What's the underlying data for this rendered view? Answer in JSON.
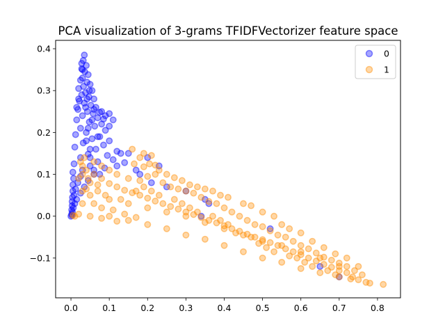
{
  "chart_data": {
    "type": "scatter",
    "title": "PCA visualization of 3-grams TFIDFVectorizer feature space",
    "xlabel": "",
    "ylabel": "",
    "xlim": [
      -0.04,
      0.86
    ],
    "ylim": [
      -0.195,
      0.42
    ],
    "x_ticks": [
      0.0,
      0.1,
      0.2,
      0.3,
      0.4,
      0.5,
      0.6,
      0.7,
      0.8
    ],
    "x_tick_labels": [
      "0.0",
      "0.1",
      "0.2",
      "0.3",
      "0.4",
      "0.5",
      "0.6",
      "0.7",
      "0.8"
    ],
    "y_ticks": [
      -0.1,
      0.0,
      0.1,
      0.2,
      0.3,
      0.4
    ],
    "y_tick_labels": [
      "−0.1",
      "0.0",
      "0.1",
      "0.2",
      "0.3",
      "0.4"
    ],
    "grid": false,
    "legend_position": "top-right",
    "marker_alpha": 0.35,
    "series": [
      {
        "name": "0",
        "color": "#0000ff",
        "points": [
          [
            0.035,
            0.385
          ],
          [
            0.032,
            0.372
          ],
          [
            0.04,
            0.36
          ],
          [
            0.028,
            0.352
          ],
          [
            0.036,
            0.345
          ],
          [
            0.045,
            0.338
          ],
          [
            0.03,
            0.33
          ],
          [
            0.025,
            0.325
          ],
          [
            0.042,
            0.32
          ],
          [
            0.05,
            0.315
          ],
          [
            0.033,
            0.31
          ],
          [
            0.02,
            0.305
          ],
          [
            0.055,
            0.3
          ],
          [
            0.038,
            0.295
          ],
          [
            0.028,
            0.29
          ],
          [
            0.047,
            0.285
          ],
          [
            0.06,
            0.28
          ],
          [
            0.022,
            0.275
          ],
          [
            0.035,
            0.27
          ],
          [
            0.052,
            0.265
          ],
          [
            0.065,
            0.26
          ],
          [
            0.018,
            0.255
          ],
          [
            0.043,
            0.25
          ],
          [
            0.058,
            0.245
          ],
          [
            0.075,
            0.248
          ],
          [
            0.1,
            0.245
          ],
          [
            0.03,
            0.24
          ],
          [
            0.07,
            0.235
          ],
          [
            0.015,
            0.23
          ],
          [
            0.048,
            0.225
          ],
          [
            0.08,
            0.22
          ],
          [
            0.062,
            0.215
          ],
          [
            0.025,
            0.21
          ],
          [
            0.09,
            0.205
          ],
          [
            0.04,
            0.2
          ],
          [
            0.012,
            0.195
          ],
          [
            0.075,
            0.19
          ],
          [
            0.055,
            0.185
          ],
          [
            0.1,
            0.18
          ],
          [
            0.032,
            0.175
          ],
          [
            0.085,
            0.17
          ],
          [
            0.01,
            0.165
          ],
          [
            0.065,
            0.16
          ],
          [
            0.12,
            0.155
          ],
          [
            0.13,
            0.15
          ],
          [
            0.045,
            0.148
          ],
          [
            0.095,
            0.145
          ],
          [
            0.025,
            0.14
          ],
          [
            0.11,
            0.135
          ],
          [
            0.07,
            0.13
          ],
          [
            0.008,
            0.125
          ],
          [
            0.14,
            0.128
          ],
          [
            0.05,
            0.12
          ],
          [
            0.088,
            0.115
          ],
          [
            0.03,
            0.11
          ],
          [
            0.005,
            0.105
          ],
          [
            0.06,
            0.1
          ],
          [
            0.025,
            0.095
          ],
          [
            0.007,
            0.09
          ],
          [
            0.045,
            0.085
          ],
          [
            0.018,
            0.08
          ],
          [
            0.005,
            0.075
          ],
          [
            0.035,
            0.07
          ],
          [
            0.012,
            0.065
          ],
          [
            0.005,
            0.06
          ],
          [
            0.025,
            0.055
          ],
          [
            0.008,
            0.05
          ],
          [
            0.004,
            0.045
          ],
          [
            0.015,
            0.04
          ],
          [
            0.003,
            0.035
          ],
          [
            0.01,
            0.03
          ],
          [
            0.003,
            0.025
          ],
          [
            0.006,
            0.02
          ],
          [
            0.002,
            0.015
          ],
          [
            0.004,
            0.01
          ],
          [
            0.002,
            0.005
          ],
          [
            0.0,
            0.0
          ],
          [
            0.003,
            0.002
          ],
          [
            0.05,
            0.16
          ],
          [
            0.04,
            0.18
          ],
          [
            0.045,
            0.21
          ],
          [
            0.055,
            0.23
          ],
          [
            0.038,
            0.26
          ],
          [
            0.042,
            0.28
          ],
          [
            0.048,
            0.3
          ],
          [
            0.03,
            0.35
          ],
          [
            0.028,
            0.365
          ],
          [
            0.07,
            0.19
          ],
          [
            0.08,
            0.25
          ],
          [
            0.06,
            0.255
          ],
          [
            0.085,
            0.232
          ],
          [
            0.11,
            0.23
          ],
          [
            0.1,
            0.215
          ],
          [
            0.09,
            0.24
          ],
          [
            0.02,
            0.28
          ],
          [
            0.015,
            0.26
          ],
          [
            0.05,
            0.14
          ],
          [
            0.06,
            0.11
          ],
          [
            0.075,
            0.1
          ],
          [
            0.12,
            0.12
          ],
          [
            0.15,
            0.15
          ],
          [
            0.18,
            0.1
          ],
          [
            0.21,
            0.08
          ],
          [
            0.25,
            0.07
          ],
          [
            0.3,
            0.06
          ],
          [
            0.35,
            0.04
          ],
          [
            0.36,
            0.03
          ],
          [
            0.34,
            0.0
          ],
          [
            0.52,
            -0.03
          ],
          [
            0.7,
            -0.145
          ],
          [
            0.65,
            -0.12
          ],
          [
            0.2,
            0.14
          ],
          [
            0.17,
            0.11
          ],
          [
            0.23,
            0.12
          ]
        ]
      },
      {
        "name": "1",
        "color": "#ff8c00",
        "points": [
          [
            0.815,
            -0.163
          ],
          [
            0.78,
            -0.16
          ],
          [
            0.77,
            -0.158
          ],
          [
            0.75,
            -0.152
          ],
          [
            0.735,
            -0.145
          ],
          [
            0.72,
            -0.135
          ],
          [
            0.7,
            -0.13
          ],
          [
            0.68,
            -0.122
          ],
          [
            0.66,
            -0.115
          ],
          [
            0.64,
            -0.107
          ],
          [
            0.62,
            -0.1
          ],
          [
            0.6,
            -0.092
          ],
          [
            0.58,
            -0.085
          ],
          [
            0.56,
            -0.078
          ],
          [
            0.54,
            -0.07
          ],
          [
            0.52,
            -0.063
          ],
          [
            0.5,
            -0.056
          ],
          [
            0.48,
            -0.05
          ],
          [
            0.46,
            -0.043
          ],
          [
            0.44,
            -0.036
          ],
          [
            0.42,
            -0.03
          ],
          [
            0.4,
            -0.023
          ],
          [
            0.38,
            -0.016
          ],
          [
            0.36,
            -0.01
          ],
          [
            0.34,
            -0.003
          ],
          [
            0.32,
            0.004
          ],
          [
            0.3,
            0.01
          ],
          [
            0.28,
            0.017
          ],
          [
            0.26,
            0.023
          ],
          [
            0.24,
            0.03
          ],
          [
            0.22,
            0.036
          ],
          [
            0.2,
            0.043
          ],
          [
            0.18,
            0.05
          ],
          [
            0.16,
            0.056
          ],
          [
            0.14,
            0.062
          ],
          [
            0.12,
            0.07
          ],
          [
            0.1,
            0.078
          ],
          [
            0.08,
            0.09
          ],
          [
            0.06,
            0.1
          ],
          [
            0.04,
            0.11
          ],
          [
            0.03,
            0.12
          ],
          [
            0.025,
            0.13
          ],
          [
            0.035,
            0.14
          ],
          [
            0.06,
            0.13
          ],
          [
            0.08,
            0.12
          ],
          [
            0.1,
            0.11
          ],
          [
            0.12,
            0.1
          ],
          [
            0.15,
            0.09
          ],
          [
            0.18,
            0.085
          ],
          [
            0.2,
            0.095
          ],
          [
            0.22,
            0.1
          ],
          [
            0.24,
            0.08
          ],
          [
            0.26,
            0.07
          ],
          [
            0.28,
            0.065
          ],
          [
            0.3,
            0.06
          ],
          [
            0.32,
            0.055
          ],
          [
            0.34,
            0.045
          ],
          [
            0.36,
            0.035
          ],
          [
            0.38,
            0.03
          ],
          [
            0.4,
            0.02
          ],
          [
            0.42,
            0.01
          ],
          [
            0.44,
            0.0
          ],
          [
            0.46,
            -0.01
          ],
          [
            0.48,
            -0.02
          ],
          [
            0.5,
            -0.025
          ],
          [
            0.52,
            -0.035
          ],
          [
            0.54,
            -0.045
          ],
          [
            0.56,
            -0.05
          ],
          [
            0.58,
            -0.06
          ],
          [
            0.6,
            -0.07
          ],
          [
            0.62,
            -0.078
          ],
          [
            0.64,
            -0.088
          ],
          [
            0.66,
            -0.098
          ],
          [
            0.68,
            -0.105
          ],
          [
            0.7,
            -0.112
          ],
          [
            0.72,
            -0.12
          ],
          [
            0.74,
            -0.13
          ],
          [
            0.76,
            -0.14
          ],
          [
            0.1,
            0.0
          ],
          [
            0.15,
            -0.01
          ],
          [
            0.2,
            -0.02
          ],
          [
            0.25,
            -0.03
          ],
          [
            0.3,
            -0.045
          ],
          [
            0.35,
            -0.055
          ],
          [
            0.4,
            -0.07
          ],
          [
            0.45,
            -0.085
          ],
          [
            0.5,
            -0.1
          ],
          [
            0.55,
            -0.11
          ],
          [
            0.6,
            -0.125
          ],
          [
            0.65,
            -0.135
          ],
          [
            0.7,
            -0.145
          ],
          [
            0.05,
            0.0
          ],
          [
            0.08,
            -0.005
          ],
          [
            0.12,
            -0.012
          ],
          [
            0.05,
            0.05
          ],
          [
            0.1,
            0.04
          ],
          [
            0.15,
            0.03
          ],
          [
            0.2,
            0.02
          ],
          [
            0.25,
            0.01
          ],
          [
            0.3,
            0.0
          ],
          [
            0.35,
            -0.015
          ],
          [
            0.4,
            -0.03
          ],
          [
            0.45,
            -0.045
          ],
          [
            0.5,
            -0.06
          ],
          [
            0.55,
            -0.07
          ],
          [
            0.6,
            -0.085
          ],
          [
            0.65,
            -0.1
          ],
          [
            0.7,
            -0.12
          ],
          [
            0.03,
            0.06
          ],
          [
            0.03,
            0.03
          ],
          [
            0.02,
            0.005
          ],
          [
            0.01,
            0.0
          ],
          [
            0.005,
            0.002
          ],
          [
            0.045,
            0.09
          ],
          [
            0.07,
            0.06
          ],
          [
            0.09,
            0.05
          ],
          [
            0.13,
            0.04
          ],
          [
            0.17,
            0.06
          ],
          [
            0.19,
            0.07
          ],
          [
            0.21,
            0.06
          ],
          [
            0.23,
            0.05
          ],
          [
            0.27,
            0.04
          ],
          [
            0.29,
            0.03
          ],
          [
            0.31,
            0.02
          ],
          [
            0.33,
            0.01
          ],
          [
            0.37,
            0.0
          ],
          [
            0.39,
            -0.01
          ],
          [
            0.41,
            -0.02
          ],
          [
            0.43,
            -0.04
          ],
          [
            0.47,
            -0.05
          ],
          [
            0.49,
            -0.065
          ],
          [
            0.51,
            -0.075
          ],
          [
            0.53,
            -0.085
          ],
          [
            0.57,
            -0.095
          ],
          [
            0.59,
            -0.1
          ],
          [
            0.61,
            -0.11
          ],
          [
            0.63,
            -0.12
          ],
          [
            0.67,
            -0.13
          ],
          [
            0.69,
            -0.14
          ],
          [
            0.73,
            -0.15
          ],
          [
            0.165,
            0.125
          ],
          [
            0.19,
            0.118
          ],
          [
            0.205,
            0.125
          ],
          [
            0.22,
            0.122
          ],
          [
            0.23,
            0.11
          ],
          [
            0.18,
            0.14
          ],
          [
            0.16,
            0.16
          ],
          [
            0.19,
            0.15
          ],
          [
            0.21,
            0.145
          ],
          [
            0.25,
            0.1
          ],
          [
            0.27,
            0.092
          ],
          [
            0.29,
            0.085
          ],
          [
            0.31,
            0.075
          ],
          [
            0.33,
            0.07
          ],
          [
            0.35,
            0.065
          ],
          [
            0.37,
            0.06
          ],
          [
            0.39,
            0.05
          ],
          [
            0.41,
            0.045
          ],
          [
            0.45,
            0.03
          ],
          [
            0.47,
            0.025
          ],
          [
            0.5,
            0.01
          ],
          [
            0.53,
            0.0
          ],
          [
            0.55,
            -0.02
          ],
          [
            0.57,
            -0.03
          ],
          [
            0.6,
            -0.04
          ],
          [
            0.63,
            -0.06
          ],
          [
            0.66,
            -0.075
          ],
          [
            0.69,
            -0.09
          ],
          [
            0.72,
            -0.1
          ],
          [
            0.75,
            -0.12
          ],
          [
            0.03,
            0.1
          ],
          [
            0.02,
            0.09
          ],
          [
            0.05,
            0.08
          ],
          [
            0.07,
            0.075
          ],
          [
            0.04,
            0.065
          ],
          [
            0.06,
            0.03
          ],
          [
            0.08,
            0.02
          ],
          [
            0.11,
            0.015
          ],
          [
            0.14,
            0.005
          ],
          [
            0.17,
            -0.003
          ]
        ]
      }
    ]
  }
}
